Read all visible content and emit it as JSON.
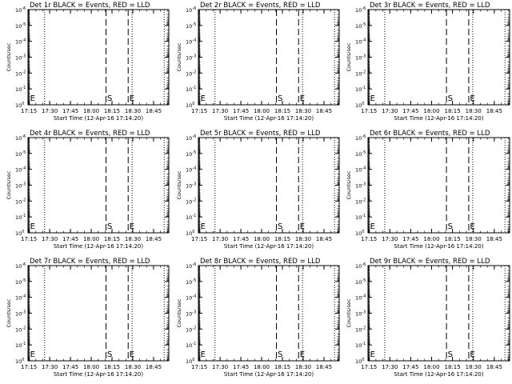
{
  "figure": {
    "background": "#ffffff",
    "foreground": "#000000"
  },
  "chart_data": [
    {
      "type": "line",
      "title": "Det 1r BLACK = Events, RED = LLD",
      "xlabel": "Start Time (12-Apr-16 17:14:20)",
      "ylabel": "Counts/sec",
      "xlim": [
        "17:14:20",
        "18:56:00"
      ],
      "x_ticks": [
        "17:15",
        "17:30",
        "17:45",
        "18:00",
        "18:15",
        "18:30",
        "18:45"
      ],
      "y_scale": "log",
      "ylim": [
        1,
        1e-06
      ],
      "y_tick_labels": [
        "10^0",
        "10^-1",
        "10^-2",
        "10^-3",
        "10^-4",
        "10^-5",
        "10^-6"
      ],
      "series": [],
      "vlines": [
        {
          "x": "17:15:00",
          "style": "solid"
        },
        {
          "x": "17:26:20",
          "style": "dotted"
        },
        {
          "x": "18:10:40",
          "style": "dashed",
          "marker": "S"
        },
        {
          "x": "18:26:40",
          "style": "dashed",
          "marker": "E"
        },
        {
          "x": "18:29:30",
          "style": "dotted"
        },
        {
          "x": "18:52:40",
          "style": "dotted"
        }
      ],
      "marker_labels": [
        {
          "text": "E",
          "x": "17:15:00"
        },
        {
          "text": "S",
          "x": "18:10:40"
        },
        {
          "text": "E",
          "x": "18:26:40"
        }
      ],
      "grid": false
    },
    {
      "type": "line",
      "title": "Det 2r BLACK = Events, RED = LLD",
      "xlabel": "Start Time (12-Apr-16 17:14:20)",
      "ylabel": "Counts/sec",
      "xlim": [
        "17:14:20",
        "18:56:00"
      ],
      "x_ticks": [
        "17:15",
        "17:30",
        "17:45",
        "18:00",
        "18:15",
        "18:30",
        "18:45"
      ],
      "y_scale": "log",
      "ylim": [
        1,
        1e-06
      ],
      "y_tick_labels": [
        "10^0",
        "10^-1",
        "10^-2",
        "10^-3",
        "10^-4",
        "10^-5",
        "10^-6"
      ],
      "series": [],
      "vlines": [
        {
          "x": "17:15:00",
          "style": "solid"
        },
        {
          "x": "17:26:20",
          "style": "dotted"
        },
        {
          "x": "18:10:40",
          "style": "dashed",
          "marker": "S"
        },
        {
          "x": "18:26:40",
          "style": "dashed",
          "marker": "E"
        },
        {
          "x": "18:29:30",
          "style": "dotted"
        },
        {
          "x": "18:52:40",
          "style": "dotted"
        }
      ],
      "marker_labels": [
        {
          "text": "E",
          "x": "17:15:00"
        },
        {
          "text": "S",
          "x": "18:10:40"
        },
        {
          "text": "E",
          "x": "18:26:40"
        }
      ],
      "grid": false
    },
    {
      "type": "line",
      "title": "Det 3r BLACK = Events, RED = LLD",
      "xlabel": "Start Time (12-Apr-16 17:14:20)",
      "ylabel": "Counts/sec",
      "xlim": [
        "17:14:20",
        "18:56:00"
      ],
      "x_ticks": [
        "17:15",
        "17:30",
        "17:45",
        "18:00",
        "18:15",
        "18:30",
        "18:45"
      ],
      "y_scale": "log",
      "ylim": [
        1,
        1e-06
      ],
      "y_tick_labels": [
        "10^0",
        "10^-1",
        "10^-2",
        "10^-3",
        "10^-4",
        "10^-5",
        "10^-6"
      ],
      "series": [],
      "vlines": [
        {
          "x": "17:15:00",
          "style": "solid"
        },
        {
          "x": "17:26:20",
          "style": "dotted"
        },
        {
          "x": "18:10:40",
          "style": "dashed",
          "marker": "S"
        },
        {
          "x": "18:26:40",
          "style": "dashed",
          "marker": "E"
        },
        {
          "x": "18:29:30",
          "style": "dotted"
        },
        {
          "x": "18:52:40",
          "style": "dotted"
        }
      ],
      "marker_labels": [
        {
          "text": "E",
          "x": "17:15:00"
        },
        {
          "text": "S",
          "x": "18:10:40"
        },
        {
          "text": "E",
          "x": "18:26:40"
        }
      ],
      "grid": false
    },
    {
      "type": "line",
      "title": "Det 4r BLACK = Events, RED = LLD",
      "xlabel": "Start Time (12-Apr-16 17:14:20)",
      "ylabel": "Counts/sec",
      "xlim": [
        "17:14:20",
        "18:56:00"
      ],
      "x_ticks": [
        "17:15",
        "17:30",
        "17:45",
        "18:00",
        "18:15",
        "18:30",
        "18:45"
      ],
      "y_scale": "log",
      "ylim": [
        1,
        1e-06
      ],
      "y_tick_labels": [
        "10^0",
        "10^-1",
        "10^-2",
        "10^-3",
        "10^-4",
        "10^-5",
        "10^-6"
      ],
      "series": [],
      "vlines": [
        {
          "x": "17:15:00",
          "style": "solid"
        },
        {
          "x": "17:26:20",
          "style": "dotted"
        },
        {
          "x": "18:10:40",
          "style": "dashed",
          "marker": "S"
        },
        {
          "x": "18:26:40",
          "style": "dashed",
          "marker": "E"
        },
        {
          "x": "18:29:30",
          "style": "dotted"
        },
        {
          "x": "18:52:40",
          "style": "dotted"
        }
      ],
      "marker_labels": [
        {
          "text": "E",
          "x": "17:15:00"
        },
        {
          "text": "S",
          "x": "18:10:40"
        },
        {
          "text": "E",
          "x": "18:26:40"
        }
      ],
      "grid": false
    },
    {
      "type": "line",
      "title": "Det 5r BLACK = Events, RED = LLD",
      "xlabel": "Start Time (12-Apr-16 17:14:20)",
      "ylabel": "Counts/sec",
      "xlim": [
        "17:14:20",
        "18:56:00"
      ],
      "x_ticks": [
        "17:15",
        "17:30",
        "17:45",
        "18:00",
        "18:15",
        "18:30",
        "18:45"
      ],
      "y_scale": "log",
      "ylim": [
        1,
        1e-06
      ],
      "y_tick_labels": [
        "10^0",
        "10^-1",
        "10^-2",
        "10^-3",
        "10^-4",
        "10^-5",
        "10^-6"
      ],
      "series": [],
      "vlines": [
        {
          "x": "17:15:00",
          "style": "solid"
        },
        {
          "x": "17:26:20",
          "style": "dotted"
        },
        {
          "x": "18:10:40",
          "style": "dashed",
          "marker": "S"
        },
        {
          "x": "18:26:40",
          "style": "dashed",
          "marker": "E"
        },
        {
          "x": "18:29:30",
          "style": "dotted"
        },
        {
          "x": "18:52:40",
          "style": "dotted"
        }
      ],
      "marker_labels": [
        {
          "text": "E",
          "x": "17:15:00"
        },
        {
          "text": "S",
          "x": "18:10:40"
        },
        {
          "text": "E",
          "x": "18:26:40"
        }
      ],
      "grid": false
    },
    {
      "type": "line",
      "title": "Det 6r BLACK = Events, RED = LLD",
      "xlabel": "Start Time (12-Apr-16 17:14:20)",
      "ylabel": "Counts/sec",
      "xlim": [
        "17:14:20",
        "18:56:00"
      ],
      "x_ticks": [
        "17:15",
        "17:30",
        "17:45",
        "18:00",
        "18:15",
        "18:30",
        "18:45"
      ],
      "y_scale": "log",
      "ylim": [
        1,
        1e-06
      ],
      "y_tick_labels": [
        "10^0",
        "10^-1",
        "10^-2",
        "10^-3",
        "10^-4",
        "10^-5",
        "10^-6"
      ],
      "series": [],
      "vlines": [
        {
          "x": "17:15:00",
          "style": "solid"
        },
        {
          "x": "17:26:20",
          "style": "dotted"
        },
        {
          "x": "18:10:40",
          "style": "dashed",
          "marker": "S"
        },
        {
          "x": "18:26:40",
          "style": "dashed",
          "marker": "E"
        },
        {
          "x": "18:29:30",
          "style": "dotted"
        },
        {
          "x": "18:52:40",
          "style": "dotted"
        }
      ],
      "marker_labels": [
        {
          "text": "E",
          "x": "17:15:00"
        },
        {
          "text": "S",
          "x": "18:10:40"
        },
        {
          "text": "E",
          "x": "18:26:40"
        }
      ],
      "grid": false
    },
    {
      "type": "line",
      "title": "Det 7r BLACK = Events, RED = LLD",
      "xlabel": "Start Time (12-Apr-16 17:14:20)",
      "ylabel": "Counts/sec",
      "xlim": [
        "17:14:20",
        "18:56:00"
      ],
      "x_ticks": [
        "17:15",
        "17:30",
        "17:45",
        "18:00",
        "18:15",
        "18:30",
        "18:45"
      ],
      "y_scale": "log",
      "ylim": [
        1,
        1e-06
      ],
      "y_tick_labels": [
        "10^0",
        "10^-1",
        "10^-2",
        "10^-3",
        "10^-4",
        "10^-5",
        "10^-6"
      ],
      "series": [],
      "vlines": [
        {
          "x": "17:15:00",
          "style": "solid"
        },
        {
          "x": "17:26:20",
          "style": "dotted"
        },
        {
          "x": "18:10:40",
          "style": "dashed",
          "marker": "S"
        },
        {
          "x": "18:26:40",
          "style": "dashed",
          "marker": "E"
        },
        {
          "x": "18:29:30",
          "style": "dotted"
        },
        {
          "x": "18:52:40",
          "style": "dotted"
        }
      ],
      "marker_labels": [
        {
          "text": "E",
          "x": "17:15:00"
        },
        {
          "text": "S",
          "x": "18:10:40"
        },
        {
          "text": "E",
          "x": "18:26:40"
        }
      ],
      "grid": false
    },
    {
      "type": "line",
      "title": "Det 8r BLACK = Events, RED = LLD",
      "xlabel": "Start Time (12-Apr-16 17:14:20)",
      "ylabel": "Counts/sec",
      "xlim": [
        "17:14:20",
        "18:56:00"
      ],
      "x_ticks": [
        "17:15",
        "17:30",
        "17:45",
        "18:00",
        "18:15",
        "18:30",
        "18:45"
      ],
      "y_scale": "log",
      "ylim": [
        1,
        1e-06
      ],
      "y_tick_labels": [
        "10^0",
        "10^-1",
        "10^-2",
        "10^-3",
        "10^-4",
        "10^-5",
        "10^-6"
      ],
      "series": [],
      "vlines": [
        {
          "x": "17:15:00",
          "style": "solid"
        },
        {
          "x": "17:26:20",
          "style": "dotted"
        },
        {
          "x": "18:10:40",
          "style": "dashed",
          "marker": "S"
        },
        {
          "x": "18:26:40",
          "style": "dashed",
          "marker": "E"
        },
        {
          "x": "18:29:30",
          "style": "dotted"
        },
        {
          "x": "18:52:40",
          "style": "dotted"
        }
      ],
      "marker_labels": [
        {
          "text": "E",
          "x": "17:15:00"
        },
        {
          "text": "S",
          "x": "18:10:40"
        },
        {
          "text": "E",
          "x": "18:26:40"
        }
      ],
      "grid": false
    },
    {
      "type": "line",
      "title": "Det 9r BLACK = Events, RED = LLD",
      "xlabel": "Start Time (12-Apr-16 17:14:20)",
      "ylabel": "Counts/sec",
      "xlim": [
        "17:14:20",
        "18:56:00"
      ],
      "x_ticks": [
        "17:15",
        "17:30",
        "17:45",
        "18:00",
        "18:15",
        "18:30",
        "18:45"
      ],
      "y_scale": "log",
      "ylim": [
        1,
        1e-06
      ],
      "y_tick_labels": [
        "10^0",
        "10^-1",
        "10^-2",
        "10^-3",
        "10^-4",
        "10^-5",
        "10^-6"
      ],
      "series": [],
      "vlines": [
        {
          "x": "17:15:00",
          "style": "solid"
        },
        {
          "x": "17:26:20",
          "style": "dotted"
        },
        {
          "x": "18:10:40",
          "style": "dashed",
          "marker": "S"
        },
        {
          "x": "18:26:40",
          "style": "dashed",
          "marker": "E"
        },
        {
          "x": "18:29:30",
          "style": "dotted"
        },
        {
          "x": "18:52:40",
          "style": "dotted"
        }
      ],
      "marker_labels": [
        {
          "text": "E",
          "x": "17:15:00"
        },
        {
          "text": "S",
          "x": "18:10:40"
        },
        {
          "text": "E",
          "x": "18:26:40"
        }
      ],
      "grid": false
    }
  ]
}
